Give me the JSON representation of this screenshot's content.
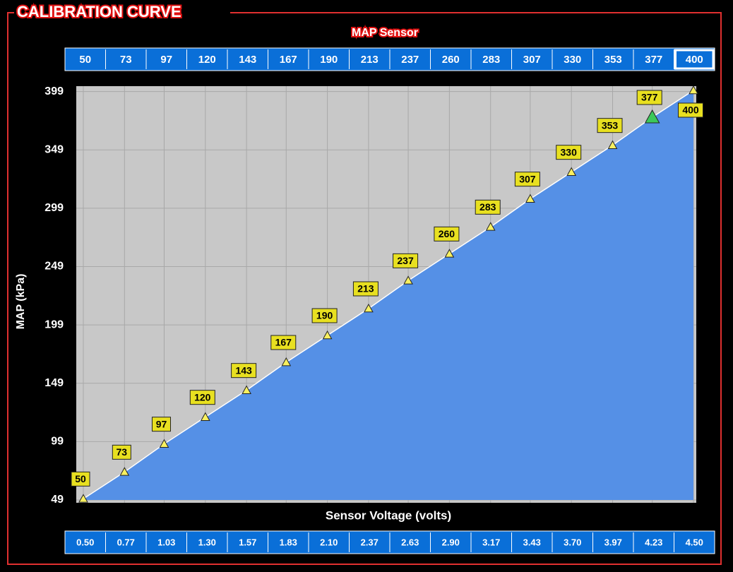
{
  "chart_data": {
    "type": "area",
    "title": "CALIBRATION CURVE",
    "subtitle": "MAP Sensor",
    "x_label": "Sensor Voltage (volts)",
    "y_label": "MAP (kPa)",
    "x": [
      0.5,
      0.77,
      1.03,
      1.3,
      1.57,
      1.83,
      2.1,
      2.37,
      2.63,
      2.9,
      3.17,
      3.43,
      3.7,
      3.97,
      4.23,
      4.5
    ],
    "values": [
      50,
      73,
      97,
      120,
      143,
      167,
      190,
      213,
      237,
      260,
      283,
      307,
      330,
      353,
      377,
      400
    ],
    "xlim": [
      0.5,
      4.5
    ],
    "xticks": [
      {
        "value": 0.5,
        "label": "0.50"
      },
      {
        "value": 0.77,
        "label": "0.77"
      },
      {
        "value": 1.03,
        "label": "1.03"
      },
      {
        "value": 1.3,
        "label": "1.30"
      },
      {
        "value": 1.57,
        "label": "1.57"
      },
      {
        "value": 1.83,
        "label": "1.83"
      },
      {
        "value": 2.1,
        "label": "2.10"
      },
      {
        "value": 2.37,
        "label": "2.37"
      },
      {
        "value": 2.63,
        "label": "2.63"
      },
      {
        "value": 2.9,
        "label": "2.90"
      },
      {
        "value": 3.17,
        "label": "3.17"
      },
      {
        "value": 3.43,
        "label": "3.43"
      },
      {
        "value": 3.7,
        "label": "3.70"
      },
      {
        "value": 3.97,
        "label": "3.97"
      },
      {
        "value": 4.23,
        "label": "4.23"
      },
      {
        "value": 4.5,
        "label": "4.50"
      }
    ],
    "ylim": [
      49,
      400
    ],
    "yticks": [
      49,
      99,
      149,
      199,
      249,
      299,
      349,
      399
    ],
    "grid": true,
    "color": "#5590e6",
    "active_point": 14,
    "selected_cell": 15
  }
}
